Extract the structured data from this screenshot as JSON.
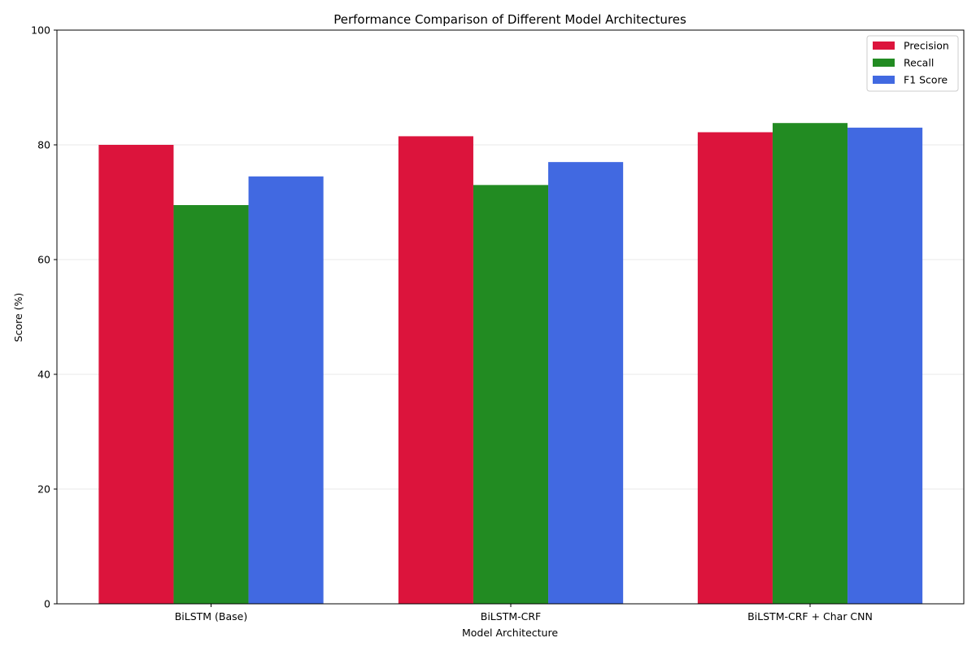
{
  "chart_data": {
    "type": "bar",
    "title": "Performance Comparison of Different Model Architectures",
    "xlabel": "Model Architecture",
    "ylabel": "Score (%)",
    "categories": [
      "BiLSTM (Base)",
      "BiLSTM-CRF",
      "BiLSTM-CRF + Char CNN"
    ],
    "ylim": [
      0,
      100
    ],
    "yticks": [
      0,
      20,
      40,
      60,
      80,
      100
    ],
    "grid": true,
    "legend_position": "top-right",
    "series": [
      {
        "name": "Precision",
        "color": "#dc143c",
        "values": [
          80.0,
          81.5,
          82.2
        ]
      },
      {
        "name": "Recall",
        "color": "#228b22",
        "values": [
          69.5,
          73.0,
          83.8
        ]
      },
      {
        "name": "F1 Score",
        "color": "#4169e1",
        "values": [
          74.5,
          77.0,
          83.0
        ]
      }
    ]
  }
}
